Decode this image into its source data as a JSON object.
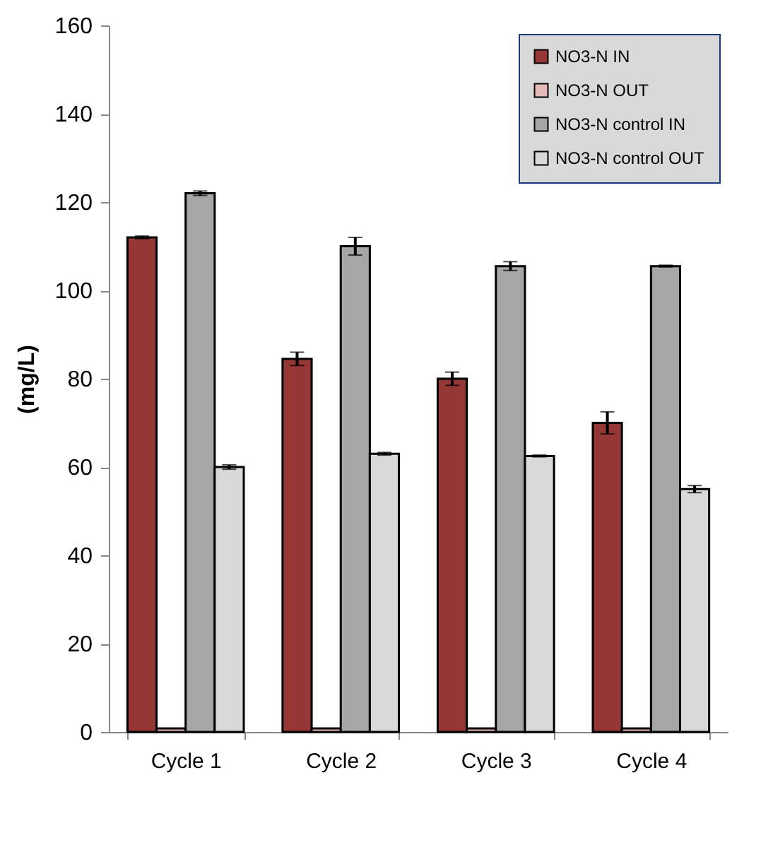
{
  "chart_data": {
    "type": "bar",
    "ylabel": "(mg/L)",
    "categories": [
      "Cycle 1",
      "Cycle 2",
      "Cycle 3",
      "Cycle 4"
    ],
    "series": [
      {
        "name": "NO3-N IN",
        "color": "#953735",
        "values": [
          112,
          84.5,
          80,
          70
        ],
        "errors": [
          0.3,
          1.5,
          1.5,
          2.5
        ]
      },
      {
        "name": "NO3-N OUT",
        "color": "#e6b9b8",
        "values": [
          0.8,
          0.8,
          0.8,
          0.8
        ]
      },
      {
        "name": "NO3-N control IN",
        "color": "#a6a6a6",
        "values": [
          122,
          110,
          105.5,
          105.5
        ],
        "errors": [
          0.5,
          2,
          1,
          0.2
        ]
      },
      {
        "name": "NO3-N control OUT",
        "color": "#d9d9d9",
        "values": [
          60,
          63,
          62.5,
          55
        ],
        "errors": [
          0.5,
          0.3,
          0.2,
          0.8
        ]
      }
    ],
    "ylim": [
      0,
      160
    ],
    "yticks": [
      0,
      20,
      40,
      60,
      80,
      100,
      120,
      140,
      160
    ],
    "grid": false,
    "legend": "top right"
  }
}
